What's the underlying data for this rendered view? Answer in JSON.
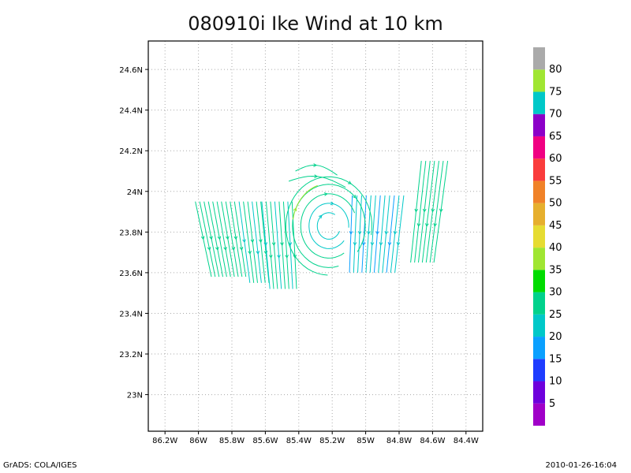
{
  "chart_data": {
    "type": "streamline",
    "title": "080910i Ike Wind at 10 km",
    "xlabel": "",
    "ylabel": "",
    "xlim": [
      -86.3,
      -84.3
    ],
    "ylim": [
      22.82,
      24.74
    ],
    "x_ticks": [
      -86.2,
      -86.0,
      -85.8,
      -85.6,
      -85.4,
      -85.2,
      -85.0,
      -84.8,
      -84.6,
      -84.4
    ],
    "x_tick_labels": [
      "86.2W",
      "86W",
      "85.8W",
      "85.6W",
      "85.4W",
      "85.2W",
      "85W",
      "84.8W",
      "84.6W",
      "84.4W"
    ],
    "y_ticks": [
      23.0,
      23.2,
      23.4,
      23.6,
      23.8,
      24.0,
      24.2,
      24.4,
      24.6
    ],
    "y_tick_labels": [
      "23N",
      "23.2N",
      "23.4N",
      "23.6N",
      "23.8N",
      "24N",
      "24.2N",
      "24.4N",
      "24.6N"
    ],
    "grid": true,
    "colorbar": {
      "labels": [
        "5",
        "10",
        "15",
        "20",
        "25",
        "30",
        "35",
        "40",
        "45",
        "50",
        "55",
        "60",
        "65",
        "70",
        "75",
        "80"
      ],
      "colors": [
        "#a000c8",
        "#6e00dc",
        "#1e3cff",
        "#0aa0ff",
        "#00c8c8",
        "#00d28c",
        "#00dc00",
        "#a0e632",
        "#e6dc32",
        "#e6af2d",
        "#f08228",
        "#fa3c3c",
        "#f00082",
        "#8c00c8",
        "#00c8c8",
        "#a0e632",
        "#aaaaaa"
      ]
    },
    "vortex_center": {
      "x": -85.22,
      "y": 23.83
    },
    "regions": [
      {
        "x": [
          -86.0,
          -85.75
        ],
        "y": [
          23.58,
          23.95
        ],
        "speed": 27
      },
      {
        "x": [
          -85.75,
          -85.6
        ],
        "y": [
          23.55,
          23.95
        ],
        "speed": 26
      },
      {
        "x": [
          -85.62,
          -85.42
        ],
        "y": [
          23.52,
          23.95
        ],
        "speed": 25
      },
      {
        "x": [
          -85.1,
          -84.78
        ],
        "y": [
          23.6,
          23.98
        ],
        "speed": 20
      },
      {
        "x": [
          -84.72,
          -84.55
        ],
        "y": [
          23.65,
          24.15
        ],
        "speed": 27
      }
    ]
  },
  "footer": {
    "left": "GrADS: COLA/IGES",
    "right": "2010-01-26-16:04"
  }
}
